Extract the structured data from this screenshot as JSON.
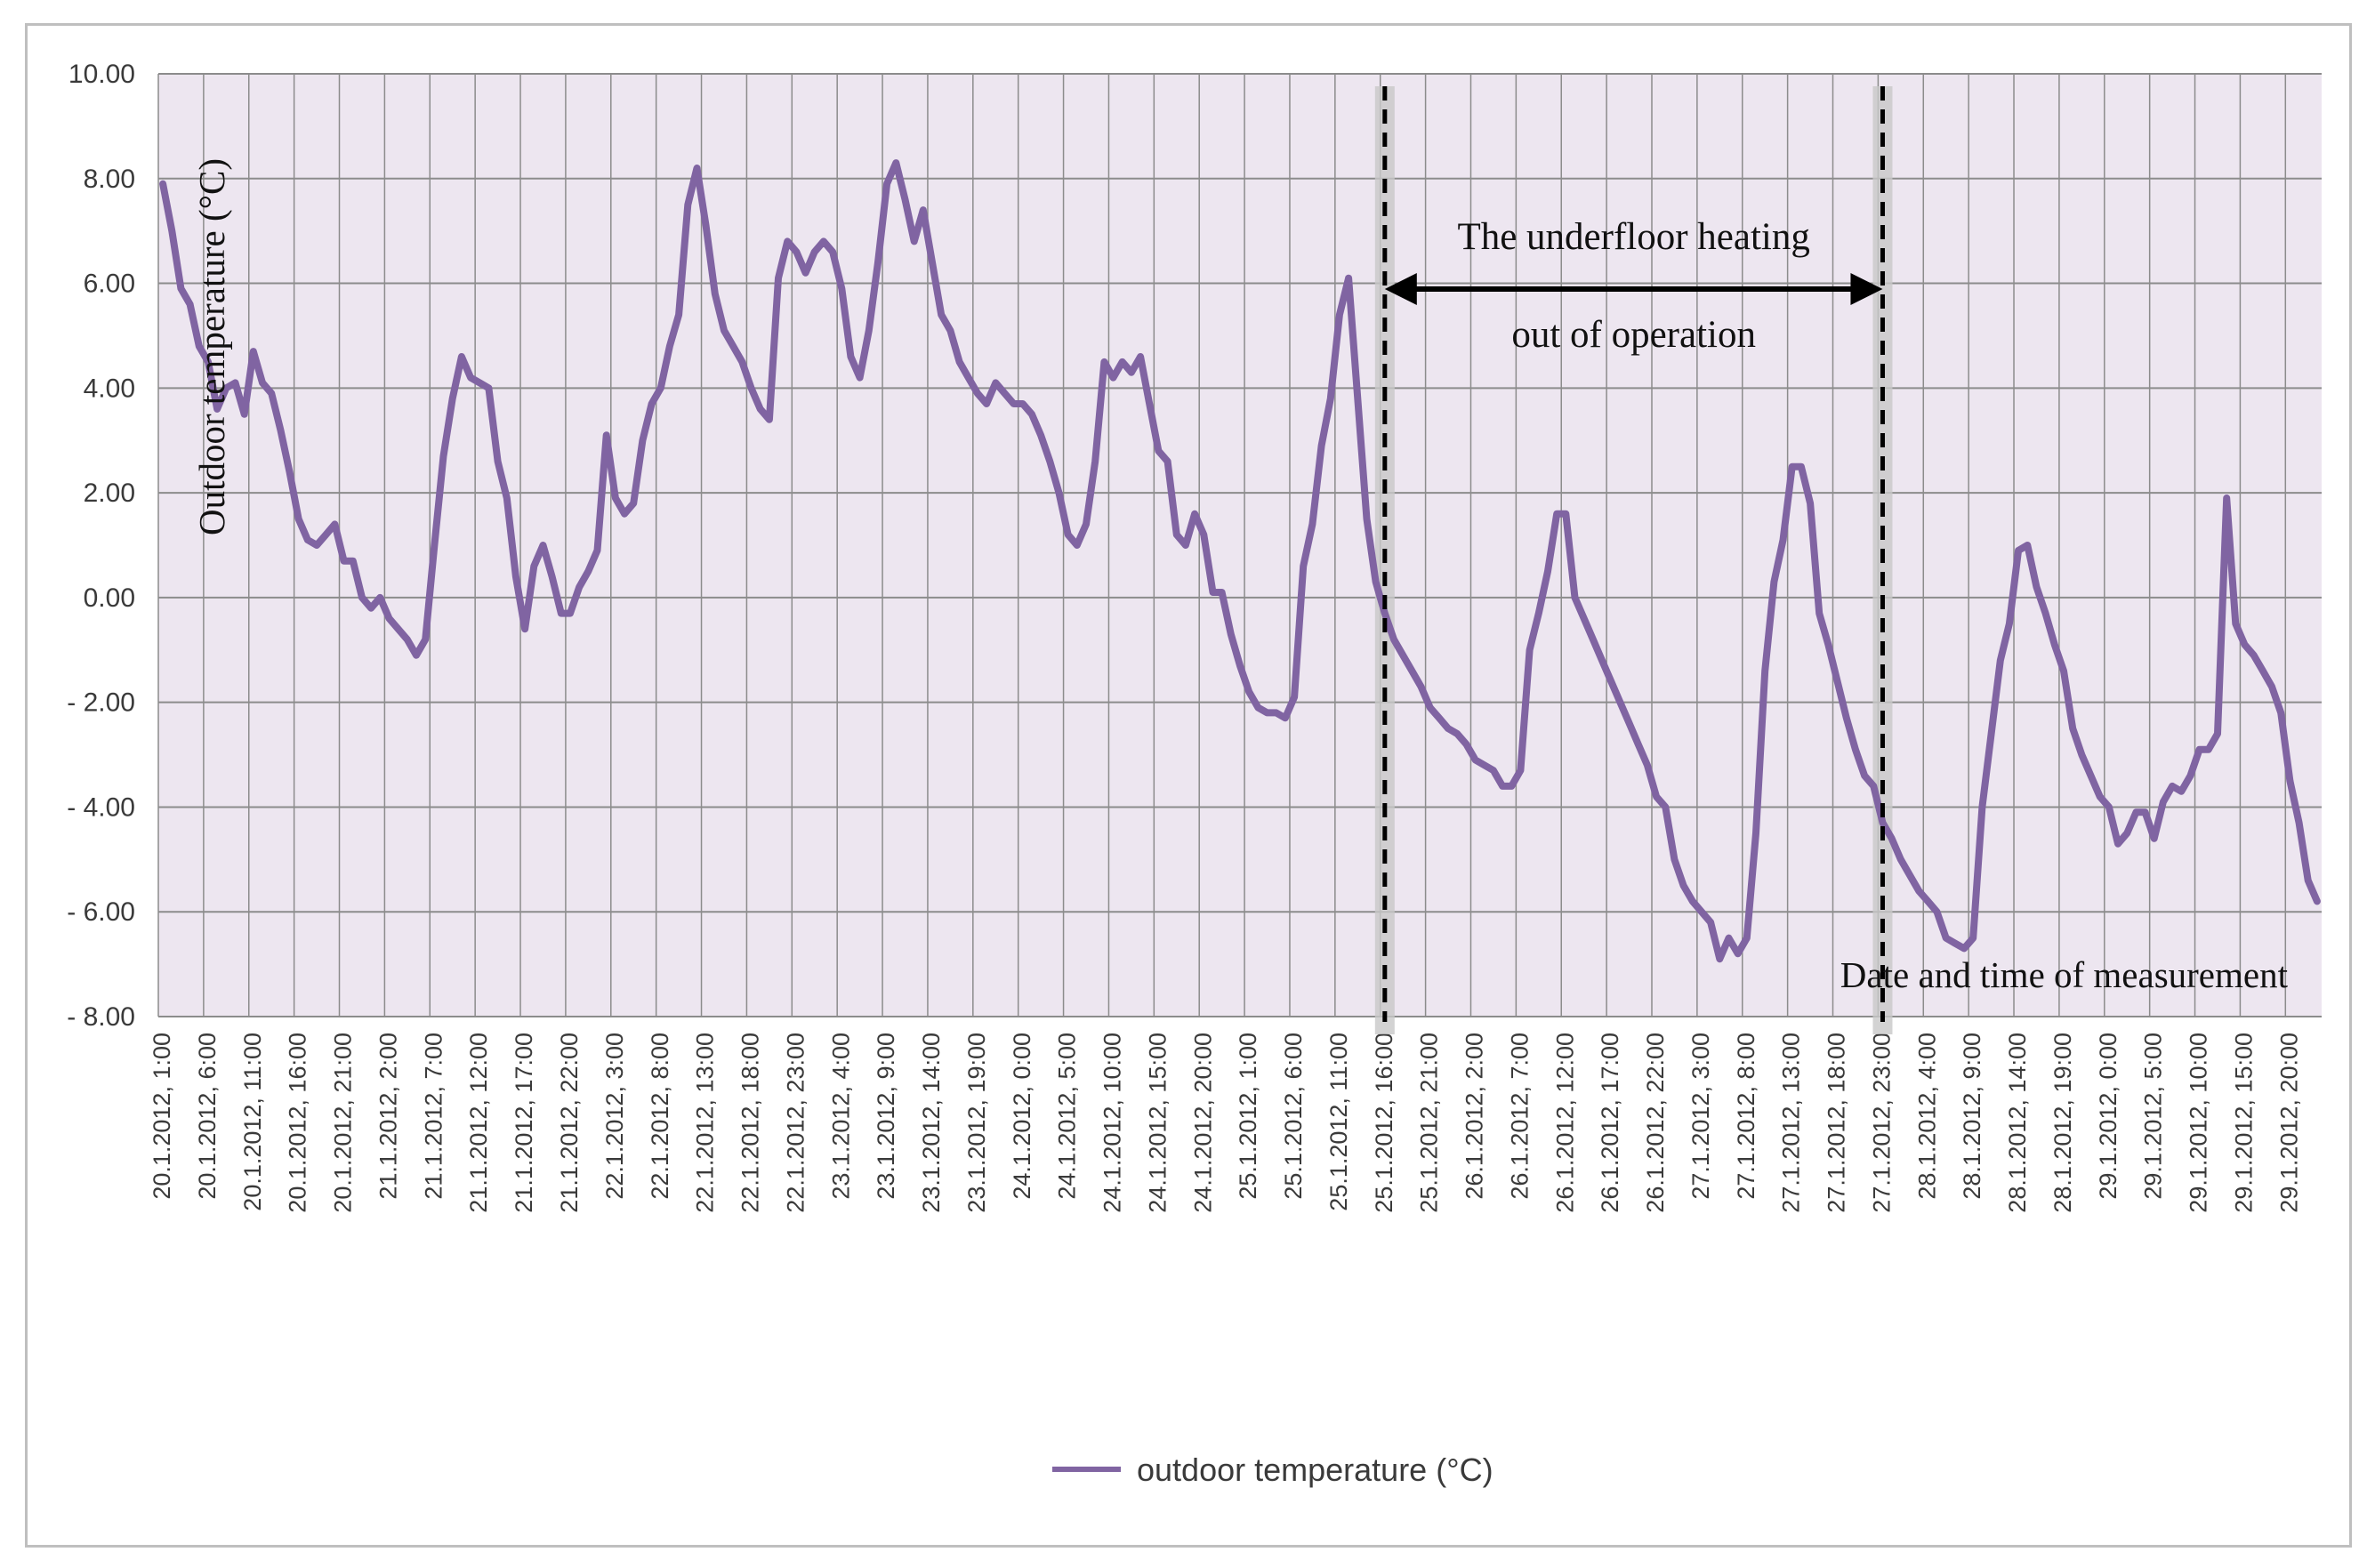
{
  "chart_data": {
    "type": "line",
    "title": "",
    "xlabel": "Date and time of measurement",
    "ylabel": "Outdoor temperature (°C)",
    "ylim": [
      -8,
      10
    ],
    "y_ticks": [
      "10.00",
      "8.00",
      "6.00",
      "4.00",
      "2.00",
      "0.00",
      "- 2.00",
      "- 4.00",
      "- 6.00",
      "- 8.00"
    ],
    "y_tick_values": [
      10,
      8,
      6,
      4,
      2,
      0,
      -2,
      -4,
      -6,
      -8
    ],
    "x_interval_hours": 1,
    "x_tick_step_hours": 5,
    "x_ticks": [
      "20.1.2012, 1:00",
      "20.1.2012, 6:00",
      "20.1.2012, 11:00",
      "20.1.2012, 16:00",
      "20.1.2012, 21:00",
      "21.1.2012, 2:00",
      "21.1.2012, 7:00",
      "21.1.2012, 12:00",
      "21.1.2012, 17:00",
      "21.1.2012, 22:00",
      "22.1.2012, 3:00",
      "22.1.2012, 8:00",
      "22.1.2012, 13:00",
      "22.1.2012, 18:00",
      "22.1.2012, 23:00",
      "23.1.2012, 4:00",
      "23.1.2012, 9:00",
      "23.1.2012, 14:00",
      "23.1.2012, 19:00",
      "24.1.2012, 0:00",
      "24.1.2012, 5:00",
      "24.1.2012, 10:00",
      "24.1.2012, 15:00",
      "24.1.2012, 20:00",
      "25.1.2012, 1:00",
      "25.1.2012, 6:00",
      "25.1.2012, 11:00",
      "25.1.2012, 16:00",
      "25.1.2012, 21:00",
      "26.1.2012, 2:00",
      "26.1.2012, 7:00",
      "26.1.2012, 12:00",
      "26.1.2012, 17:00",
      "26.1.2012, 22:00",
      "27.1.2012, 3:00",
      "27.1.2012, 8:00",
      "27.1.2012, 13:00",
      "27.1.2012, 18:00",
      "27.1.2012, 23:00",
      "28.1.2012, 4:00",
      "28.1.2012, 9:00",
      "28.1.2012, 14:00",
      "28.1.2012, 19:00",
      "29.1.2012, 0:00",
      "29.1.2012, 5:00",
      "29.1.2012, 10:00",
      "29.1.2012, 15:00",
      "29.1.2012, 20:00"
    ],
    "series": [
      {
        "name": "outdoor temperature (°C)",
        "color": "#8064a2",
        "values": [
          7.9,
          7.0,
          5.9,
          5.6,
          4.8,
          4.5,
          3.6,
          4.0,
          4.1,
          3.5,
          4.7,
          4.1,
          3.9,
          3.2,
          2.4,
          1.5,
          1.1,
          1.0,
          1.2,
          1.4,
          0.7,
          0.7,
          0.0,
          -0.2,
          0.0,
          -0.4,
          -0.6,
          -0.8,
          -1.1,
          -0.8,
          1.0,
          2.7,
          3.8,
          4.6,
          4.2,
          4.1,
          4.0,
          2.6,
          1.9,
          0.4,
          -0.6,
          0.6,
          1.0,
          0.4,
          -0.3,
          -0.3,
          0.2,
          0.5,
          0.9,
          3.1,
          1.9,
          1.6,
          1.8,
          3.0,
          3.7,
          4.0,
          4.8,
          5.4,
          7.5,
          8.2,
          7.1,
          5.8,
          5.1,
          4.8,
          4.5,
          4.0,
          3.6,
          3.4,
          6.1,
          6.8,
          6.6,
          6.2,
          6.6,
          6.8,
          6.6,
          5.9,
          4.6,
          4.2,
          5.1,
          6.4,
          7.9,
          8.3,
          7.6,
          6.8,
          7.4,
          6.4,
          5.4,
          5.1,
          4.5,
          4.2,
          3.9,
          3.7,
          4.1,
          3.9,
          3.7,
          3.7,
          3.5,
          3.1,
          2.6,
          2.0,
          1.2,
          1.0,
          1.4,
          2.6,
          4.5,
          4.2,
          4.5,
          4.3,
          4.6,
          3.7,
          2.8,
          2.6,
          1.2,
          1.0,
          1.6,
          1.2,
          0.1,
          0.1,
          -0.7,
          -1.3,
          -1.8,
          -2.1,
          -2.2,
          -2.2,
          -2.3,
          -1.9,
          0.6,
          1.4,
          2.9,
          3.8,
          5.4,
          6.1,
          3.8,
          1.5,
          0.3,
          -0.3,
          -0.8,
          -1.1,
          -1.4,
          -1.7,
          -2.1,
          -2.3,
          -2.5,
          -2.6,
          -2.8,
          -3.1,
          -3.2,
          -3.3,
          -3.6,
          -3.6,
          -3.3,
          -1.0,
          -0.3,
          0.5,
          1.6,
          1.6,
          0.0,
          -0.4,
          -0.8,
          -1.2,
          -1.6,
          -2.0,
          -2.4,
          -2.8,
          -3.2,
          -3.8,
          -4.0,
          -5.0,
          -5.5,
          -5.8,
          -6.0,
          -6.2,
          -6.9,
          -6.5,
          -6.8,
          -6.5,
          -4.5,
          -1.4,
          0.3,
          1.1,
          2.5,
          2.5,
          1.8,
          -0.3,
          -0.9,
          -1.6,
          -2.3,
          -2.9,
          -3.4,
          -3.6,
          -4.3,
          -4.6,
          -5.0,
          -5.3,
          -5.6,
          -5.8,
          -6.0,
          -6.5,
          -6.6,
          -6.7,
          -6.5,
          -4.0,
          -2.6,
          -1.2,
          -0.5,
          0.9,
          1.0,
          0.2,
          -0.3,
          -0.9,
          -1.4,
          -2.5,
          -3.0,
          -3.4,
          -3.8,
          -4.0,
          -4.7,
          -4.5,
          -4.1,
          -4.1,
          -4.6,
          -3.9,
          -3.6,
          -3.7,
          -3.4,
          -2.9,
          -2.9,
          -2.6,
          1.9,
          -0.5,
          -0.9,
          -1.1,
          -1.4,
          -1.7,
          -2.2,
          -3.5,
          -4.3,
          -5.4,
          -5.8
        ]
      }
    ],
    "annotations": {
      "heating_off_line1": "The underfloor heating",
      "heating_off_line2": "out of operation",
      "heating_off_start": "25.1.2012, 16:00",
      "heating_off_end": "27.1.2012, 23:00"
    },
    "legend_position": "bottom",
    "grid": true
  }
}
